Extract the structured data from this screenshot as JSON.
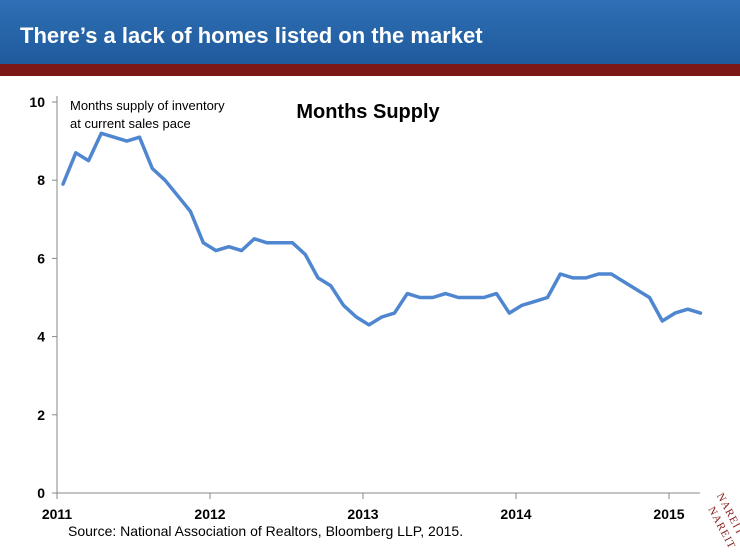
{
  "header": {
    "title": "There’s a lack of homes listed on the market"
  },
  "source": "Source: National Association of Realtors, Bloomberg LLP, 2015.",
  "logo": {
    "text": "NAREIT",
    "icon": "nareit-seal-icon"
  },
  "colors": {
    "header_blue": "#2a65a9",
    "rule": "#7a1818",
    "series": "#4f86d0"
  },
  "chart_data": {
    "type": "line",
    "title": "Months Supply",
    "annotation": [
      "Months supply of inventory",
      "at current sales pace"
    ],
    "xlabel": "",
    "ylabel": "",
    "ylim": [
      0,
      10
    ],
    "yticks": [
      0,
      2,
      4,
      6,
      8,
      10
    ],
    "xticks": [
      "2011",
      "2012",
      "2013",
      "2014",
      "2015"
    ],
    "xlim": [
      "2011-01",
      "2015-03"
    ],
    "grid": false,
    "series": [
      {
        "x": [
          "2011-01",
          "2011-02",
          "2011-03",
          "2011-04",
          "2011-05",
          "2011-06",
          "2011-07",
          "2011-08",
          "2011-09",
          "2011-10",
          "2011-11",
          "2011-12",
          "2012-01",
          "2012-02",
          "2012-03",
          "2012-04",
          "2012-05",
          "2012-06",
          "2012-07",
          "2012-08",
          "2012-09",
          "2012-10",
          "2012-11",
          "2012-12",
          "2013-01",
          "2013-02",
          "2013-03",
          "2013-04",
          "2013-05",
          "2013-06",
          "2013-07",
          "2013-08",
          "2013-09",
          "2013-10",
          "2013-11",
          "2013-12",
          "2014-01",
          "2014-02",
          "2014-03",
          "2014-04",
          "2014-05",
          "2014-06",
          "2014-07",
          "2014-08",
          "2014-09",
          "2014-10",
          "2014-11",
          "2014-12",
          "2015-01",
          "2015-02",
          "2015-03"
        ],
        "values": [
          7.9,
          8.7,
          8.5,
          9.2,
          9.1,
          9.0,
          9.1,
          8.3,
          8.0,
          7.6,
          7.2,
          6.4,
          6.2,
          6.3,
          6.2,
          6.5,
          6.4,
          6.4,
          6.4,
          6.1,
          5.5,
          5.3,
          4.8,
          4.5,
          4.3,
          4.5,
          4.6,
          5.1,
          5.0,
          5.0,
          5.1,
          5.0,
          5.0,
          5.0,
          5.1,
          4.6,
          4.8,
          4.9,
          5.0,
          5.6,
          5.5,
          5.5,
          5.6,
          5.6,
          5.4,
          5.2,
          5.0,
          4.4,
          4.6,
          4.7,
          4.6
        ]
      }
    ]
  }
}
